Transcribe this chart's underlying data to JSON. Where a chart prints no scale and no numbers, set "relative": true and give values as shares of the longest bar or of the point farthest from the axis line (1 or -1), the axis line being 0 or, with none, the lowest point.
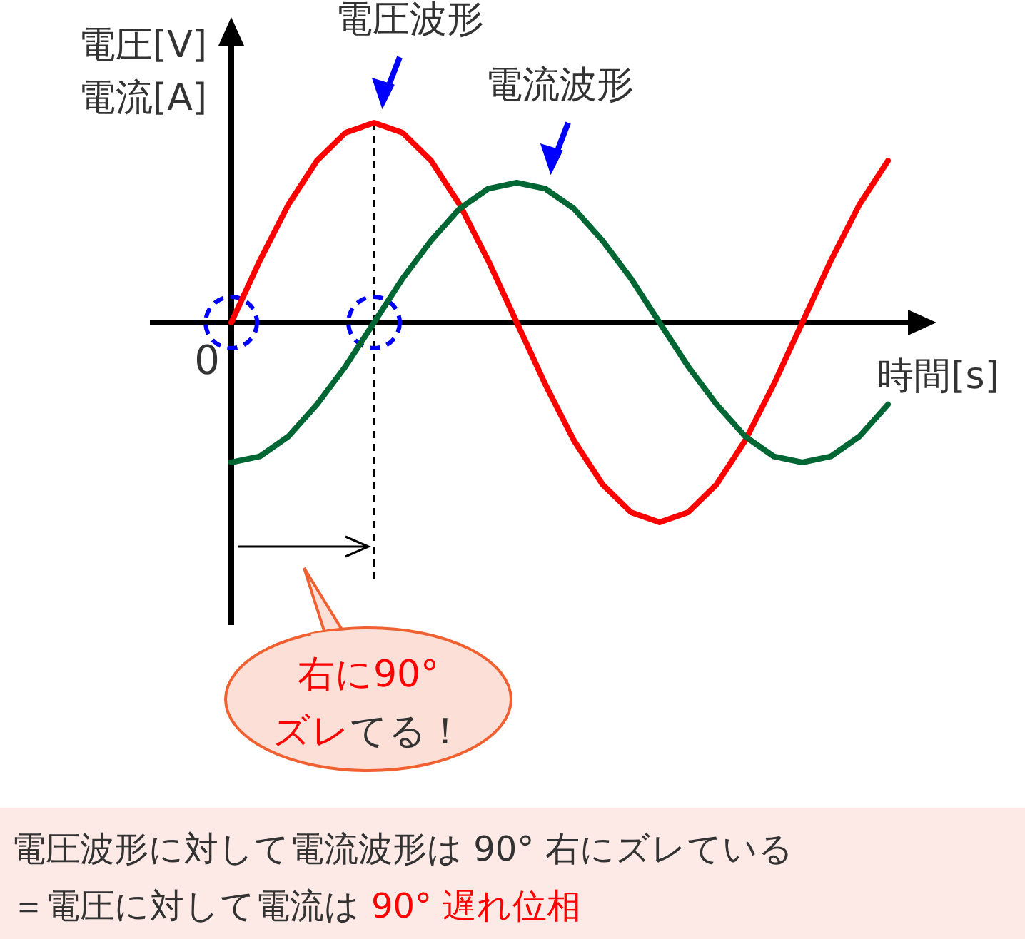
{
  "chart_data": {
    "type": "line",
    "relative": true,
    "xlabel": "時間[s]",
    "ylabel": "電圧[V] 電流[A]",
    "categories": [
      null,
      null,
      null,
      null,
      null,
      null,
      null,
      null,
      null,
      null,
      null,
      null,
      null,
      null,
      null,
      null,
      null,
      null,
      null,
      null,
      null,
      null,
      null,
      null
    ],
    "series": [
      {
        "name": "電圧波形",
        "color": "#ff0000",
        "values": [
          0,
          0.31,
          0.59,
          0.81,
          0.95,
          1,
          0.95,
          0.81,
          0.59,
          0.31,
          0,
          -0.31,
          -0.59,
          -0.81,
          -0.95,
          -1,
          -0.95,
          -0.81,
          -0.59,
          -0.31,
          0,
          0.31,
          0.59,
          0.81
        ]
      },
      {
        "name": "電流波形",
        "color": "#006633",
        "values": [
          -0.7,
          -0.67,
          -0.57,
          -0.41,
          -0.22,
          0,
          0.22,
          0.41,
          0.57,
          0.67,
          0.7,
          0.67,
          0.57,
          0.41,
          0.22,
          0,
          -0.22,
          -0.41,
          -0.57,
          -0.67,
          -0.7,
          -0.67,
          -0.57,
          -0.41
        ]
      }
    ],
    "annotations": [
      "0",
      "右に90°",
      "ズレ",
      "てる！",
      "電圧波形に対して電流波形は 90° 右にズレている",
      "＝電圧に対して電流は",
      "90° 遅れ位相"
    ]
  }
}
